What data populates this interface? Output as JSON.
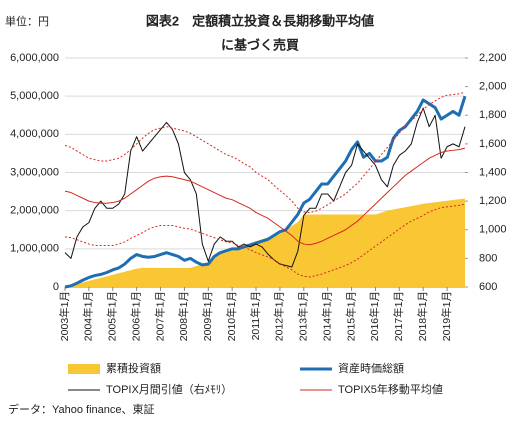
{
  "chart_data": {
    "type": "line",
    "title": [
      "図表2　定額積立投資＆長期移動平均値",
      "に基づく売買"
    ],
    "unit_label": "単位：円",
    "source": "データ：Yahoo finance、東証",
    "categories": [
      "2003年1月",
      null,
      null,
      null,
      "2004年1月",
      null,
      null,
      null,
      "2005年1月",
      null,
      null,
      null,
      "2006年1月",
      null,
      null,
      null,
      "2007年1月",
      null,
      null,
      null,
      "2008年1月",
      null,
      null,
      null,
      "2009年1月",
      null,
      null,
      null,
      "2010年1月",
      null,
      null,
      null,
      "2011年1月",
      null,
      null,
      null,
      "2012年1月",
      null,
      null,
      null,
      "2013年1月",
      null,
      null,
      null,
      "2014年1月",
      null,
      null,
      null,
      "2015年1月",
      null,
      null,
      null,
      "2016年1月",
      null,
      null,
      null,
      "2017年1月",
      null,
      null,
      null,
      "2018年1月",
      null,
      null,
      null,
      "2019年1月",
      null,
      null,
      null
    ],
    "ylim": [
      0,
      6000000
    ],
    "yticks": [
      0,
      {
        "value": 1000000,
        "label": "1,000,000"
      },
      {
        "value": 2000000,
        "label": "2,000,000"
      },
      {
        "value": 3000000,
        "label": "3,000,000"
      },
      {
        "value": 4000000,
        "label": "4,000,000"
      },
      {
        "value": 5000000,
        "label": "5,000,000"
      },
      {
        "value": 6000000,
        "label": "6,000,000"
      }
    ],
    "y2lim": [
      600,
      2200
    ],
    "y2ticks": [
      600,
      800,
      {
        "value": 1000,
        "label": "1,000"
      },
      {
        "value": 1200,
        "label": "1,200"
      },
      {
        "value": 1400,
        "label": "1,400"
      },
      {
        "value": 1600,
        "label": "1,600"
      },
      {
        "value": 1800,
        "label": "1,800"
      },
      {
        "value": 2000,
        "label": "2,000"
      },
      {
        "value": 2200,
        "label": "2,200"
      }
    ],
    "series": [
      {
        "name": "累積投資額",
        "type": "area",
        "color": "#F9C733",
        "values": [
          0,
          40000,
          80000,
          120000,
          160000,
          200000,
          240000,
          280000,
          320000,
          360000,
          400000,
          440000,
          480000,
          500000,
          500000,
          500000,
          500000,
          500000,
          500000,
          500000,
          500000,
          500000,
          550000,
          600000,
          650000,
          800000,
          900000,
          950000,
          1000000,
          1050000,
          1100000,
          1150000,
          1200000,
          1250000,
          1300000,
          1350000,
          1400000,
          1500000,
          1600000,
          1700000,
          1900000,
          1900000,
          1900000,
          1900000,
          1900000,
          1900000,
          1900000,
          1900000,
          1900000,
          1900000,
          1900000,
          1900000,
          1900000,
          1950000,
          2000000,
          2030000,
          2060000,
          2090000,
          2120000,
          2150000,
          2180000,
          2200000,
          2220000,
          2240000,
          2260000,
          2280000,
          2300000,
          2320000
        ]
      },
      {
        "name": "資産時価総額",
        "type": "line",
        "color": "#1F6EB4",
        "width": 3,
        "values": [
          0,
          30000,
          100000,
          180000,
          250000,
          300000,
          330000,
          380000,
          450000,
          500000,
          600000,
          750000,
          850000,
          800000,
          780000,
          800000,
          850000,
          900000,
          850000,
          800000,
          700000,
          750000,
          650000,
          580000,
          600000,
          800000,
          900000,
          950000,
          1000000,
          1000000,
          1050000,
          1100000,
          1150000,
          1200000,
          1250000,
          1350000,
          1450000,
          1500000,
          1700000,
          1900000,
          2200000,
          2300000,
          2500000,
          2700000,
          2700000,
          2900000,
          3100000,
          3300000,
          3600000,
          3800000,
          3400000,
          3500000,
          3300000,
          3300000,
          3400000,
          3900000,
          4100000,
          4200000,
          4400000,
          4600000,
          4900000,
          4800000,
          4700000,
          4400000,
          4500000,
          4600000,
          4500000,
          5000000
        ]
      },
      {
        "name": "TOPIX月間引値（右ﾒﾓﾘ）",
        "type": "line",
        "axis": "y2",
        "color": "#111111",
        "width": 1,
        "values": [
          840,
          800,
          950,
          1020,
          1050,
          1150,
          1200,
          1150,
          1150,
          1180,
          1250,
          1550,
          1650,
          1550,
          1600,
          1650,
          1700,
          1750,
          1700,
          1600,
          1400,
          1350,
          1250,
          900,
          780,
          900,
          950,
          920,
          920,
          880,
          900,
          880,
          900,
          880,
          830,
          790,
          760,
          750,
          740,
          850,
          1100,
          1150,
          1150,
          1250,
          1250,
          1200,
          1300,
          1400,
          1450,
          1600,
          1550,
          1500,
          1450,
          1350,
          1300,
          1450,
          1520,
          1550,
          1600,
          1750,
          1850,
          1720,
          1800,
          1500,
          1580,
          1600,
          1580,
          1720
        ]
      },
      {
        "name": "TOPIX5年移動平均値",
        "type": "line",
        "axis": "y2",
        "color": "#D42A1E",
        "width": 1,
        "values": [
          1270,
          1260,
          1240,
          1220,
          1200,
          1190,
          1185,
          1185,
          1190,
          1200,
          1220,
          1250,
          1280,
          1310,
          1340,
          1360,
          1370,
          1375,
          1370,
          1360,
          1350,
          1340,
          1320,
          1300,
          1280,
          1260,
          1240,
          1220,
          1210,
          1190,
          1170,
          1150,
          1120,
          1100,
          1080,
          1050,
          1020,
          990,
          960,
          920,
          900,
          895,
          905,
          920,
          940,
          960,
          980,
          1000,
          1030,
          1060,
          1100,
          1140,
          1180,
          1220,
          1260,
          1300,
          1340,
          1380,
          1410,
          1440,
          1470,
          1500,
          1520,
          1540,
          1550,
          1555,
          1560,
          1570
        ]
      },
      {
        "type": "line",
        "axis": "y2",
        "color": "#D42A1E",
        "width": 1,
        "dash": true,
        "values": [
          1590,
          1575,
          1550,
          1525,
          1500,
          1490,
          1480,
          1480,
          1490,
          1500,
          1525,
          1560,
          1600,
          1640,
          1675,
          1700,
          1710,
          1720,
          1710,
          1700,
          1690,
          1675,
          1650,
          1625,
          1600,
          1575,
          1550,
          1525,
          1510,
          1490,
          1460,
          1440,
          1400,
          1375,
          1350,
          1310,
          1275,
          1240,
          1200,
          1150,
          1125,
          1120,
          1130,
          1150,
          1175,
          1200,
          1225,
          1250,
          1290,
          1325,
          1375,
          1425,
          1475,
          1525,
          1575,
          1625,
          1675,
          1725,
          1760,
          1800,
          1840,
          1875,
          1900,
          1925,
          1940,
          1945,
          1950,
          1960
        ]
      },
      {
        "type": "line",
        "axis": "y2",
        "color": "#D42A1E",
        "width": 1,
        "dash": true,
        "values": [
          950,
          945,
          930,
          915,
          900,
          890,
          890,
          890,
          890,
          900,
          915,
          940,
          960,
          980,
          1005,
          1020,
          1030,
          1030,
          1030,
          1020,
          1010,
          1005,
          990,
          975,
          960,
          945,
          930,
          915,
          910,
          890,
          880,
          860,
          840,
          825,
          810,
          790,
          765,
          740,
          720,
          690,
          675,
          670,
          680,
          690,
          705,
          720,
          735,
          750,
          770,
          795,
          825,
          855,
          885,
          915,
          945,
          975,
          1005,
          1035,
          1060,
          1080,
          1100,
          1125,
          1140,
          1155,
          1160,
          1165,
          1170,
          1180
        ]
      }
    ]
  }
}
